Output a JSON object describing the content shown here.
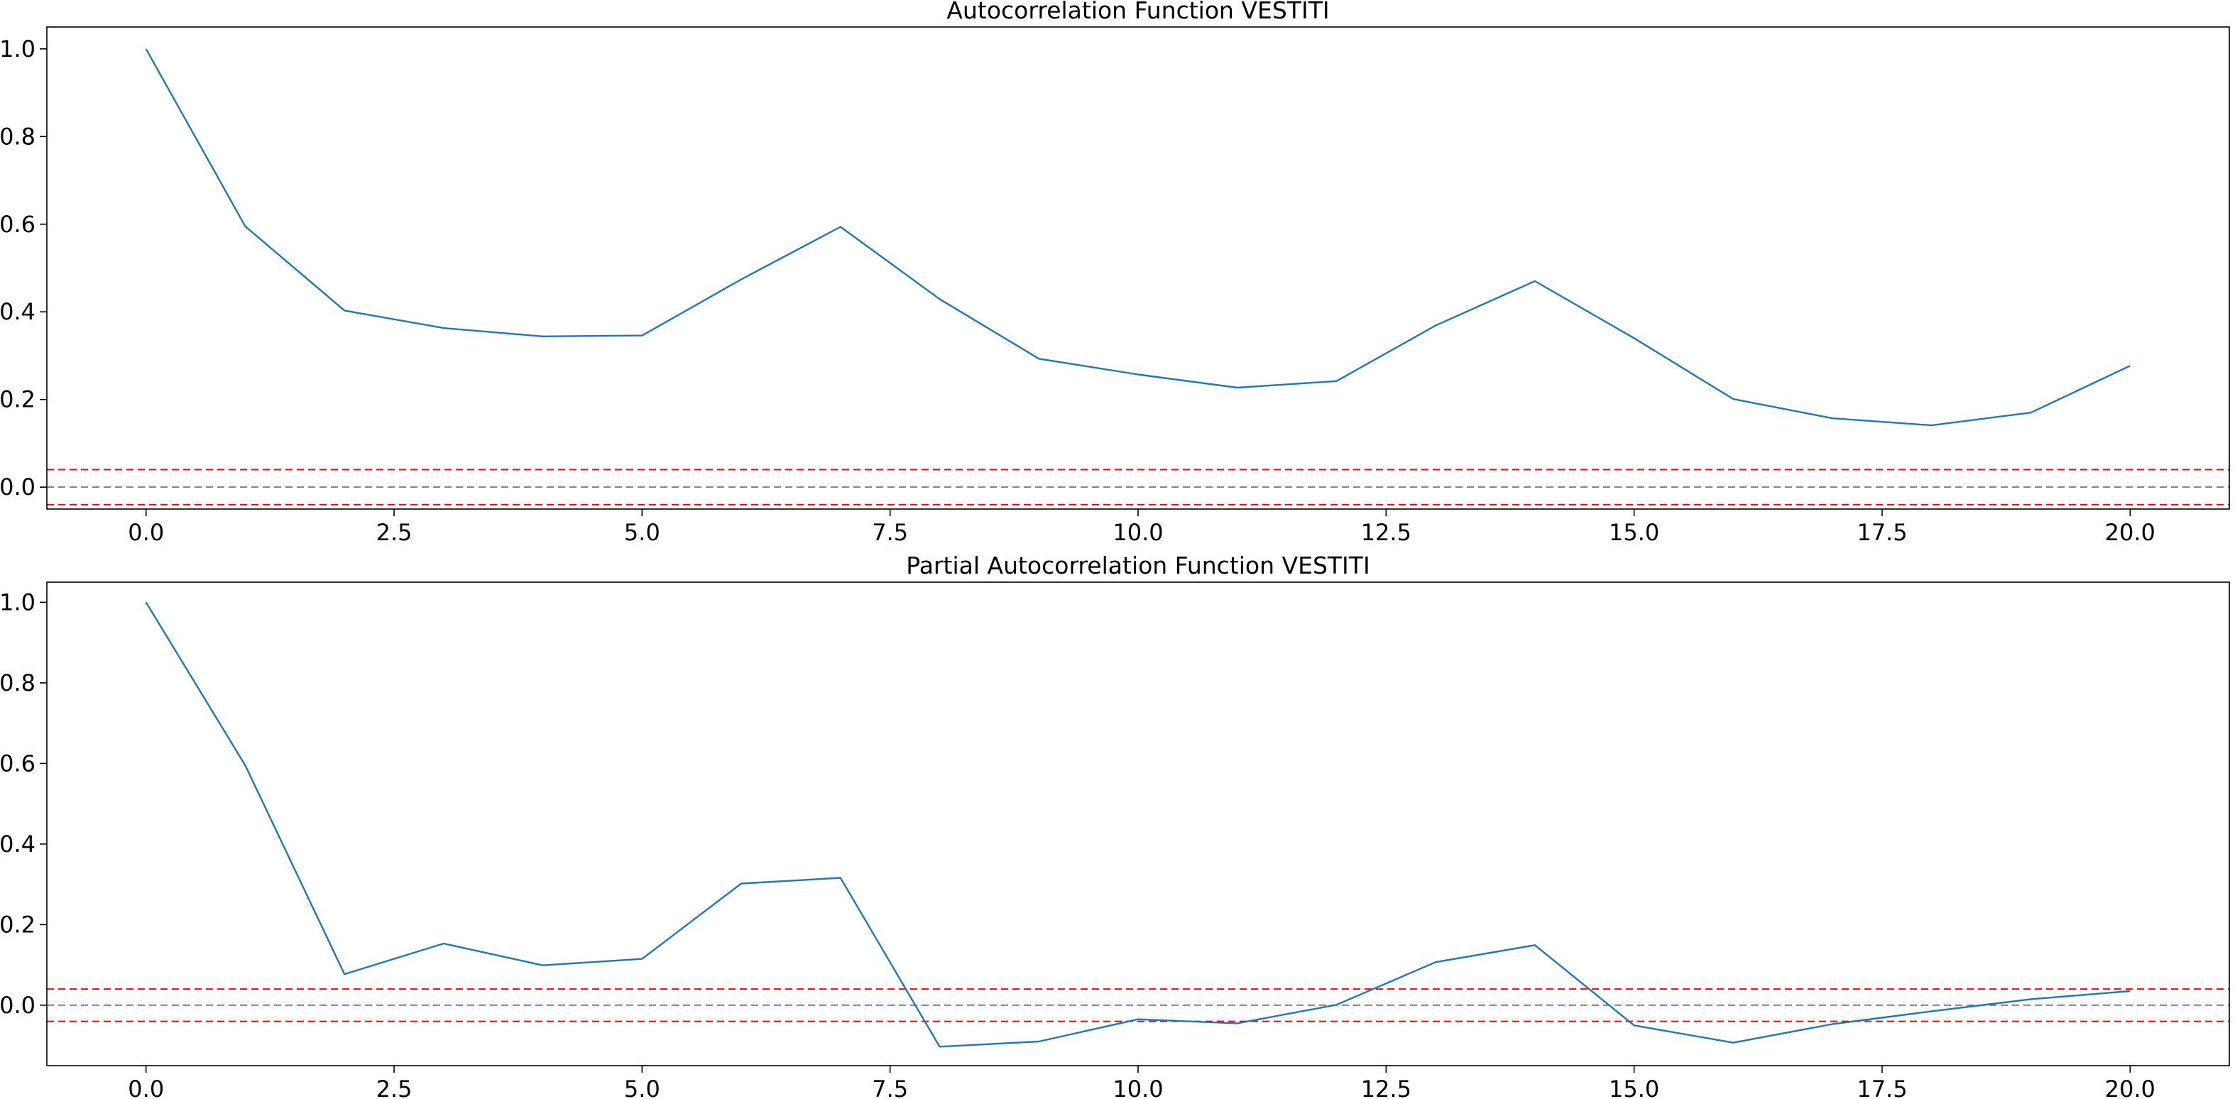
{
  "chart_data": [
    {
      "type": "line",
      "title": "Autocorrelation Function VESTITI",
      "xlabel": "",
      "ylabel": "",
      "x": [
        0,
        1,
        2,
        3,
        4,
        5,
        6,
        7,
        8,
        9,
        10,
        11,
        12,
        13,
        14,
        15,
        16,
        17,
        18,
        19,
        20
      ],
      "series": [
        {
          "color": "#1f77b4",
          "values": [
            1.0,
            0.595,
            0.403,
            0.363,
            0.344,
            0.346,
            0.474,
            0.594,
            0.429,
            0.293,
            0.257,
            0.227,
            0.242,
            0.369,
            0.47,
            0.34,
            0.201,
            0.157,
            0.141,
            0.17,
            0.277
          ]
        }
      ],
      "reference_lines": [
        {
          "y": 0.0,
          "color": "#808080",
          "style": "dashed"
        },
        {
          "y": 0.04,
          "color": "#ff0000",
          "style": "dashed"
        },
        {
          "y": -0.04,
          "color": "#ff0000",
          "style": "dashed"
        }
      ],
      "xlim": [
        -1.0,
        21.0
      ],
      "ylim": [
        -0.05,
        1.05
      ],
      "xticks": [
        0,
        2.5,
        5,
        7.5,
        10,
        12.5,
        15,
        17.5,
        20
      ],
      "xtick_labels": [
        "0.0",
        "2.5",
        "5.0",
        "7.5",
        "10.0",
        "12.5",
        "15.0",
        "17.5",
        "20.0"
      ],
      "yticks": [
        0,
        0.2,
        0.4,
        0.6,
        0.8,
        1.0
      ],
      "ytick_labels": [
        "0.0",
        "0.2",
        "0.4",
        "0.6",
        "0.8",
        "1.0"
      ],
      "grid": false,
      "legend": "none"
    },
    {
      "type": "line",
      "title": "Partial Autocorrelation Function VESTITI",
      "xlabel": "",
      "ylabel": "",
      "x": [
        0,
        1,
        2,
        3,
        4,
        5,
        6,
        7,
        8,
        9,
        10,
        11,
        12,
        13,
        14,
        15,
        16,
        17,
        18,
        19,
        20
      ],
      "series": [
        {
          "color": "#1f77b4",
          "values": [
            1.0,
            0.595,
            0.077,
            0.153,
            0.099,
            0.115,
            0.302,
            0.316,
            -0.103,
            -0.09,
            -0.035,
            -0.045,
            0.001,
            0.107,
            0.149,
            -0.05,
            -0.093,
            -0.047,
            -0.015,
            0.015,
            0.035
          ]
        }
      ],
      "reference_lines": [
        {
          "y": 0.0,
          "color": "#808080",
          "style": "dashed"
        },
        {
          "y": 0.04,
          "color": "#ff0000",
          "style": "dashed"
        },
        {
          "y": -0.04,
          "color": "#ff0000",
          "style": "dashed"
        }
      ],
      "xlim": [
        -1.0,
        21.0
      ],
      "ylim": [
        -0.15,
        1.05
      ],
      "xticks": [
        0,
        2.5,
        5,
        7.5,
        10,
        12.5,
        15,
        17.5,
        20
      ],
      "xtick_labels": [
        "0.0",
        "2.5",
        "5.0",
        "7.5",
        "10.0",
        "12.5",
        "15.0",
        "17.5",
        "20.0"
      ],
      "yticks": [
        0,
        0.2,
        0.4,
        0.6,
        0.8,
        1.0
      ],
      "ytick_labels": [
        "0.0",
        "0.2",
        "0.4",
        "0.6",
        "0.8",
        "1.0"
      ],
      "grid": false,
      "legend": "none"
    }
  ]
}
